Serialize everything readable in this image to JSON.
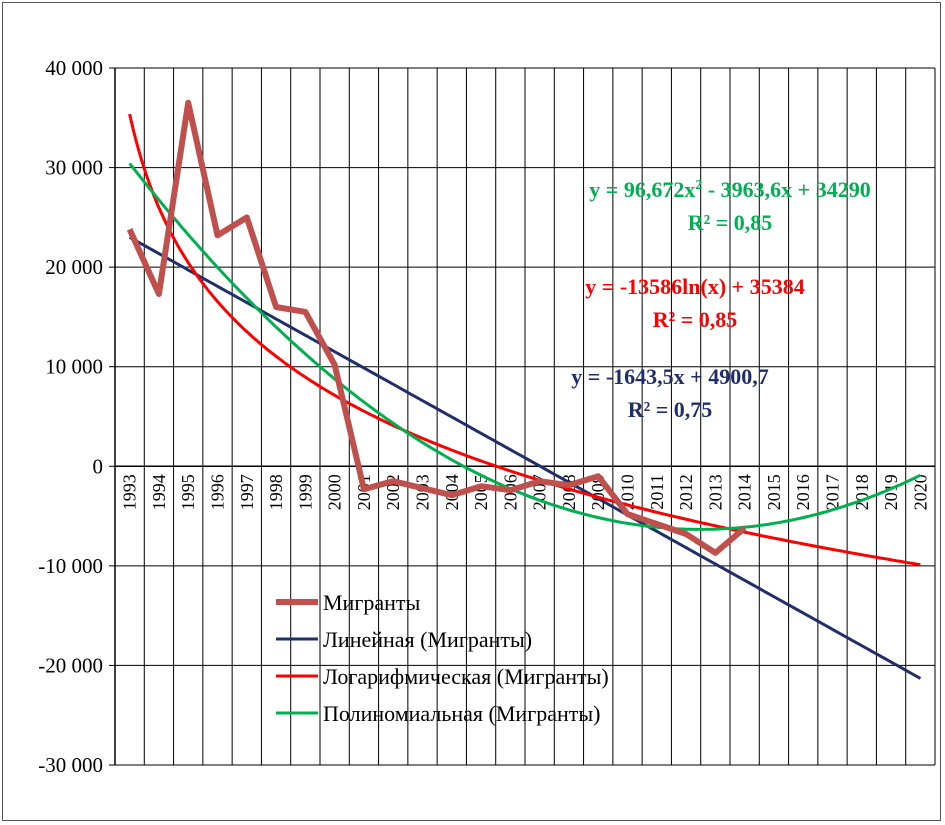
{
  "chart_data": {
    "type": "line",
    "title": "",
    "xlabel": "",
    "ylabel": "",
    "ylim": [
      -30000,
      40000
    ],
    "ytick_values": [
      40000,
      30000,
      20000,
      10000,
      0,
      -10000,
      -20000,
      -30000
    ],
    "ytick_labels": [
      "40 000",
      "30 000",
      "20 000",
      "10 000",
      "0",
      "-10 000",
      "-20 000",
      "-30 000"
    ],
    "categories": [
      "1993",
      "1994",
      "1995",
      "1996",
      "1997",
      "1998",
      "1999",
      "2000",
      "2001",
      "2002",
      "2003",
      "2004",
      "2005",
      "2006",
      "2007",
      "2008",
      "2009",
      "2010",
      "2011",
      "2012",
      "2013",
      "2014",
      "2015",
      "2016",
      "2017",
      "2018",
      "2019",
      "2020"
    ],
    "grid": true,
    "series": [
      {
        "name": "Мигранты",
        "color": "#c0504d",
        "width": 6,
        "values": [
          23800,
          17300,
          36500,
          23200,
          25000,
          16000,
          15500,
          10200,
          -2300,
          -1500,
          -2200,
          -2900,
          -2000,
          -2400,
          -1500,
          -1900,
          -1000,
          -4800,
          -5800,
          -6800,
          -8700,
          -6200,
          null,
          null,
          null,
          null,
          null,
          null
        ]
      },
      {
        "name": "Линейная (Мигранты)",
        "color": "#1f2f6b",
        "width": 3,
        "kind": "linear"
      },
      {
        "name": "Логарифмическая (Мигранты)",
        "color": "#ff0000",
        "width": 3,
        "kind": "log"
      },
      {
        "name": "Полиномиальная (Мигранты)",
        "color": "#00b050",
        "width": 3,
        "kind": "poly"
      }
    ],
    "annotations": [
      {
        "series": "Полиномиальная (Мигранты)",
        "color": "#00b050",
        "line1": "y = 96,672x",
        "sup": "2",
        "line1_rest": " - 3963,6x + 34290",
        "line2": "R² = 0,85"
      },
      {
        "series": "Логарифмическая (Мигранты)",
        "color": "#ff0000",
        "line1": "y = -13586ln(x) + 35384",
        "line2": "R² = 0,85"
      },
      {
        "series": "Линейная (Мигранты)",
        "color": "#1f2f6b",
        "line1": "y = -1643,5x + 4900,7",
        "line2": "R² = 0,75"
      }
    ],
    "legend": {
      "position": "bottom-center",
      "items": [
        "Мигранты",
        "Линейная (Мигранты)",
        "Логарифмическая (Мигранты)",
        "Полиномиальная (Мигранты)"
      ]
    }
  }
}
